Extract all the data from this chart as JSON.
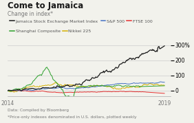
{
  "title": "Come to Jamaica",
  "subtitle": "Change in index*",
  "yticks": [
    0,
    100,
    200,
    300
  ],
  "ylim": [
    -35,
    330
  ],
  "xlim": [
    2014.0,
    2019.2
  ],
  "footnote1": "Data: Compiled by Bloomberg",
  "footnote2": "*Price-only indexes denominated in U.S. dollars, plotted weekly",
  "legend_entries": [
    {
      "label": "Jamaica Stock Exchange Market Index",
      "color": "#1a1a1a"
    },
    {
      "label": "S&P 500",
      "color": "#4472c4"
    },
    {
      "label": "FTSE 100",
      "color": "#e63030"
    },
    {
      "label": "Shanghai Composite",
      "color": "#2ca02c"
    },
    {
      "label": "Nikkei 225",
      "color": "#d4b000"
    }
  ],
  "background_color": "#f2f2ec",
  "grid_color": "#cccccc",
  "title_fontsize": 8.5,
  "subtitle_fontsize": 5.5,
  "legend_fontsize": 4.5,
  "footnote_fontsize": 4.2,
  "axis_fontsize": 5.5
}
